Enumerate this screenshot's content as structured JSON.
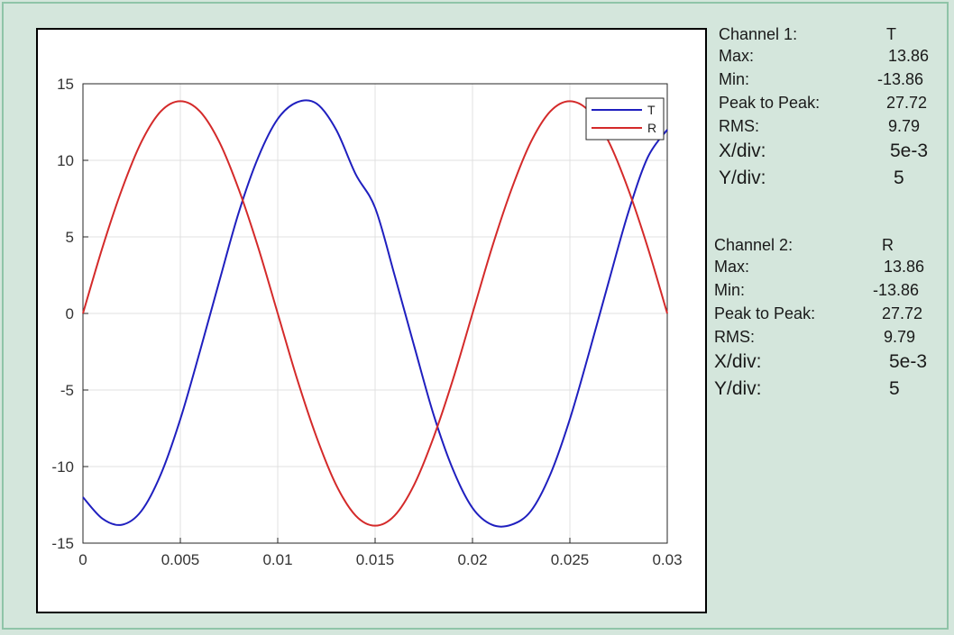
{
  "channel1": {
    "header_label": "Channel 1:",
    "header_value": "T",
    "stats": [
      {
        "label": "Max:",
        "value": "13.86"
      },
      {
        "label": "Min:",
        "value": "-13.86"
      },
      {
        "label": "Peak to Peak:",
        "value": "27.72"
      },
      {
        "label": "RMS:",
        "value": "9.79"
      },
      {
        "label": "X/div:",
        "value": "5e-3"
      },
      {
        "label": "Y/div:",
        "value": "5"
      }
    ]
  },
  "channel2": {
    "header_label": "Channel 2:",
    "header_value": "R",
    "stats": [
      {
        "label": "Max:",
        "value": "13.86"
      },
      {
        "label": "Min:",
        "value": "-13.86"
      },
      {
        "label": "Peak to Peak:",
        "value": "27.72"
      },
      {
        "label": "RMS:",
        "value": "9.79"
      },
      {
        "label": "X/div:",
        "value": "5e-3"
      },
      {
        "label": "Y/div:",
        "value": "5"
      }
    ]
  },
  "chart_data": {
    "type": "line",
    "xlim": [
      0,
      0.03
    ],
    "ylim": [
      -15,
      15
    ],
    "x_ticks": [
      "0",
      "0.005",
      "0.01",
      "0.015",
      "0.02",
      "0.025",
      "0.03"
    ],
    "y_ticks": [
      "15",
      "10",
      "5",
      "0",
      "-5",
      "-10",
      "-15"
    ],
    "grid": true,
    "legend_position": "top-right",
    "series": [
      {
        "name": "T",
        "color": "#1f1fbf",
        "x": [
          0,
          0.001,
          0.002,
          0.003,
          0.004,
          0.005,
          0.006,
          0.007,
          0.008,
          0.009,
          0.01,
          0.011,
          0.012,
          0.013,
          0.014,
          0.015,
          0.016,
          0.017,
          0.018,
          0.019,
          0.02,
          0.021,
          0.022,
          0.023,
          0.024,
          0.025,
          0.026,
          0.027,
          0.028,
          0.029,
          0.03
        ],
        "values": [
          -12.0,
          -13.4,
          -13.8,
          -12.9,
          -10.5,
          -6.9,
          -2.5,
          2.1,
          6.6,
          10.2,
          12.7,
          13.8,
          13.7,
          12.0,
          9.1,
          6.9,
          2.5,
          -2.1,
          -6.6,
          -10.2,
          -12.7,
          -13.8,
          -13.8,
          -12.9,
          -10.5,
          -6.9,
          -2.5,
          2.1,
          6.6,
          10.2,
          12.0
        ]
      },
      {
        "name": "R",
        "color": "#d42a2a",
        "x": [
          0,
          0.001,
          0.002,
          0.003,
          0.004,
          0.005,
          0.006,
          0.007,
          0.008,
          0.009,
          0.01,
          0.011,
          0.012,
          0.013,
          0.014,
          0.015,
          0.016,
          0.017,
          0.018,
          0.019,
          0.02,
          0.021,
          0.022,
          0.023,
          0.024,
          0.025,
          0.026,
          0.027,
          0.028,
          0.029,
          0.03
        ],
        "values": [
          0,
          4.3,
          8.1,
          11.2,
          13.2,
          13.86,
          13.2,
          11.2,
          8.1,
          4.3,
          0,
          -4.3,
          -8.1,
          -11.2,
          -13.2,
          -13.86,
          -13.2,
          -11.2,
          -8.1,
          -4.3,
          0,
          4.3,
          8.1,
          11.2,
          13.2,
          13.86,
          13.2,
          11.2,
          8.1,
          4.3,
          0
        ]
      }
    ]
  }
}
